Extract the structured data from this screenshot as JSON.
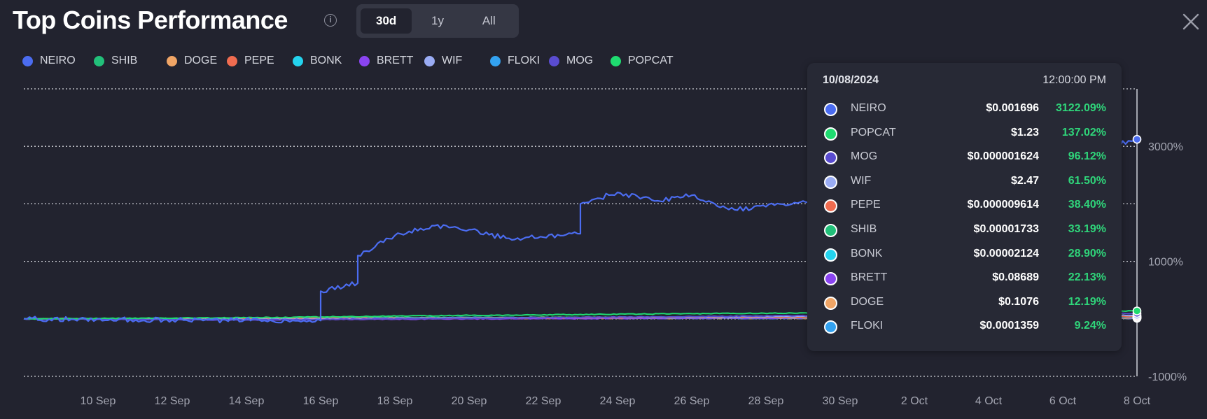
{
  "header": {
    "title": "Top Coins Performance",
    "info_icon": "info-circle-icon",
    "close_icon": "close-x-icon"
  },
  "range_tabs": [
    {
      "label": "30d",
      "active": true
    },
    {
      "label": "1y",
      "active": false
    },
    {
      "label": "All",
      "active": false
    }
  ],
  "legend": [
    {
      "name": "NEIRO",
      "color": "#4b6cf0"
    },
    {
      "name": "SHIB",
      "color": "#22c07a"
    },
    {
      "name": "DOGE",
      "color": "#f0a566"
    },
    {
      "name": "PEPE",
      "color": "#f06c50"
    },
    {
      "name": "BONK",
      "color": "#24d3ee"
    },
    {
      "name": "BRETT",
      "color": "#8a44f0"
    },
    {
      "name": "WIF",
      "color": "#9aacf4"
    },
    {
      "name": "FLOKI",
      "color": "#33a2f0"
    },
    {
      "name": "MOG",
      "color": "#5a4cd0"
    },
    {
      "name": "POPCAT",
      "color": "#1fdb70"
    }
  ],
  "tooltip": {
    "date": "10/08/2024",
    "time": "12:00:00 PM",
    "rows": [
      {
        "name": "NEIRO",
        "price": "$0.001696",
        "change": "3122.09%",
        "color": "#4b6cf0"
      },
      {
        "name": "POPCAT",
        "price": "$1.23",
        "change": "137.02%",
        "color": "#1fdb70"
      },
      {
        "name": "MOG",
        "price": "$0.000001624",
        "change": "96.12%",
        "color": "#5a4cd0"
      },
      {
        "name": "WIF",
        "price": "$2.47",
        "change": "61.50%",
        "color": "#9aacf4"
      },
      {
        "name": "PEPE",
        "price": "$0.000009614",
        "change": "38.40%",
        "color": "#f06c50"
      },
      {
        "name": "SHIB",
        "price": "$0.00001733",
        "change": "33.19%",
        "color": "#22c07a"
      },
      {
        "name": "BONK",
        "price": "$0.00002124",
        "change": "28.90%",
        "color": "#24d3ee"
      },
      {
        "name": "BRETT",
        "price": "$0.08689",
        "change": "22.13%",
        "color": "#8a44f0"
      },
      {
        "name": "DOGE",
        "price": "$0.1076",
        "change": "12.19%",
        "color": "#f0a566"
      },
      {
        "name": "FLOKI",
        "price": "$0.0001359",
        "change": "9.24%",
        "color": "#33a2f0"
      }
    ]
  },
  "chart_data": {
    "type": "line",
    "title": "Top Coins Performance",
    "xlabel": "",
    "ylabel": "",
    "y_unit": "%",
    "ylim": [
      -1000,
      4000
    ],
    "y_ticks": [
      {
        "value": 3000,
        "label": "3000%"
      },
      {
        "value": 1000,
        "label": "1000%"
      },
      {
        "value": -1000,
        "label": "-1000%"
      }
    ],
    "grid_values": [
      4000,
      3000,
      2000,
      1000,
      0,
      -1000
    ],
    "x_ticks": [
      "10 Sep",
      "12 Sep",
      "14 Sep",
      "16 Sep",
      "18 Sep",
      "20 Sep",
      "22 Sep",
      "24 Sep",
      "26 Sep",
      "28 Sep",
      "30 Sep",
      "2 Oct",
      "4 Oct",
      "6 Oct",
      "8 Oct"
    ],
    "x_range": [
      "2024-09-08",
      "2024-10-08"
    ],
    "crosshair_date": "2024-10-08",
    "legend_position": "top-left",
    "series": [
      {
        "name": "NEIRO",
        "color": "#4b6cf0",
        "x": [
          "2024-09-08",
          "2024-09-12",
          "2024-09-16",
          "2024-09-16",
          "2024-09-17",
          "2024-09-17",
          "2024-09-18",
          "2024-09-19",
          "2024-09-20",
          "2024-09-21",
          "2024-09-22",
          "2024-09-23",
          "2024-09-23",
          "2024-09-24",
          "2024-09-25",
          "2024-09-26",
          "2024-09-27",
          "2024-09-28",
          "2024-09-29",
          "2024-09-30",
          "2024-10-01",
          "2024-10-03",
          "2024-10-05",
          "2024-10-07",
          "2024-10-08"
        ],
        "y": [
          0,
          -20,
          -30,
          480,
          620,
          1100,
          1450,
          1620,
          1550,
          1400,
          1420,
          1480,
          2000,
          2200,
          2050,
          2150,
          1900,
          1950,
          2050,
          1950,
          2000,
          2300,
          2600,
          2950,
          3122.09
        ]
      },
      {
        "name": "POPCAT",
        "color": "#1fdb70",
        "x": [
          "2024-09-08",
          "2024-09-14",
          "2024-09-20",
          "2024-09-26",
          "2024-10-02",
          "2024-10-08"
        ],
        "y": [
          0,
          20,
          60,
          90,
          110,
          137.02
        ]
      },
      {
        "name": "MOG",
        "color": "#5a4cd0",
        "x": [
          "2024-09-08",
          "2024-09-14",
          "2024-09-20",
          "2024-09-26",
          "2024-10-02",
          "2024-10-08"
        ],
        "y": [
          0,
          -20,
          10,
          40,
          70,
          96.12
        ]
      },
      {
        "name": "WIF",
        "color": "#9aacf4",
        "x": [
          "2024-09-08",
          "2024-09-14",
          "2024-09-20",
          "2024-09-26",
          "2024-10-02",
          "2024-10-08"
        ],
        "y": [
          0,
          -10,
          15,
          35,
          50,
          61.5
        ]
      },
      {
        "name": "PEPE",
        "color": "#f06c50",
        "x": [
          "2024-09-08",
          "2024-09-14",
          "2024-09-20",
          "2024-09-26",
          "2024-10-02",
          "2024-10-08"
        ],
        "y": [
          0,
          5,
          15,
          25,
          30,
          38.4
        ]
      },
      {
        "name": "SHIB",
        "color": "#22c07a",
        "x": [
          "2024-09-08",
          "2024-09-14",
          "2024-09-20",
          "2024-09-26",
          "2024-10-02",
          "2024-10-08"
        ],
        "y": [
          0,
          8,
          20,
          30,
          32,
          33.19
        ]
      },
      {
        "name": "BONK",
        "color": "#24d3ee",
        "x": [
          "2024-09-08",
          "2024-09-14",
          "2024-09-20",
          "2024-09-26",
          "2024-10-02",
          "2024-10-08"
        ],
        "y": [
          0,
          10,
          25,
          20,
          25,
          28.9
        ]
      },
      {
        "name": "BRETT",
        "color": "#8a44f0",
        "x": [
          "2024-09-08",
          "2024-09-14",
          "2024-09-20",
          "2024-09-26",
          "2024-10-02",
          "2024-10-08"
        ],
        "y": [
          0,
          -15,
          0,
          10,
          18,
          22.13
        ]
      },
      {
        "name": "DOGE",
        "color": "#f0a566",
        "x": [
          "2024-09-08",
          "2024-09-14",
          "2024-09-20",
          "2024-09-26",
          "2024-10-02",
          "2024-10-08"
        ],
        "y": [
          0,
          3,
          8,
          10,
          11,
          12.19
        ]
      },
      {
        "name": "FLOKI",
        "color": "#33a2f0",
        "x": [
          "2024-09-08",
          "2024-09-14",
          "2024-09-20",
          "2024-09-26",
          "2024-10-02",
          "2024-10-08"
        ],
        "y": [
          0,
          -5,
          5,
          8,
          9,
          9.24
        ]
      }
    ]
  }
}
